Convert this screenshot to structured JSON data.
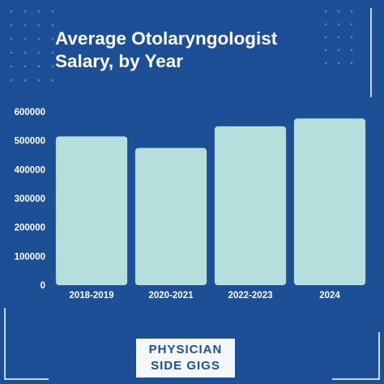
{
  "colors": {
    "background": "#1c4f96",
    "bar": "#b5dedd",
    "text": "#ffffff",
    "dots": "#5f86be",
    "frame": "#ffffff"
  },
  "logo": {
    "line1": "PHYSICIAN",
    "line2": "SIDE GIGS"
  },
  "chart_data": {
    "type": "bar",
    "title_lines": [
      "Average Otolaryngologist",
      "Salary, by Year"
    ],
    "xlabel": "",
    "ylabel": "",
    "categories": [
      "2018-2019",
      "2020-2021",
      "2022-2023",
      "2024"
    ],
    "values": [
      515000,
      475000,
      550000,
      577000
    ],
    "ylim": [
      0,
      600000
    ],
    "yticks": [
      0,
      100000,
      200000,
      300000,
      400000,
      500000,
      600000
    ],
    "ytick_labels": [
      "0",
      "100000",
      "200000",
      "300000",
      "400000",
      "500000",
      "600000"
    ],
    "grid": false,
    "legend": "none"
  }
}
